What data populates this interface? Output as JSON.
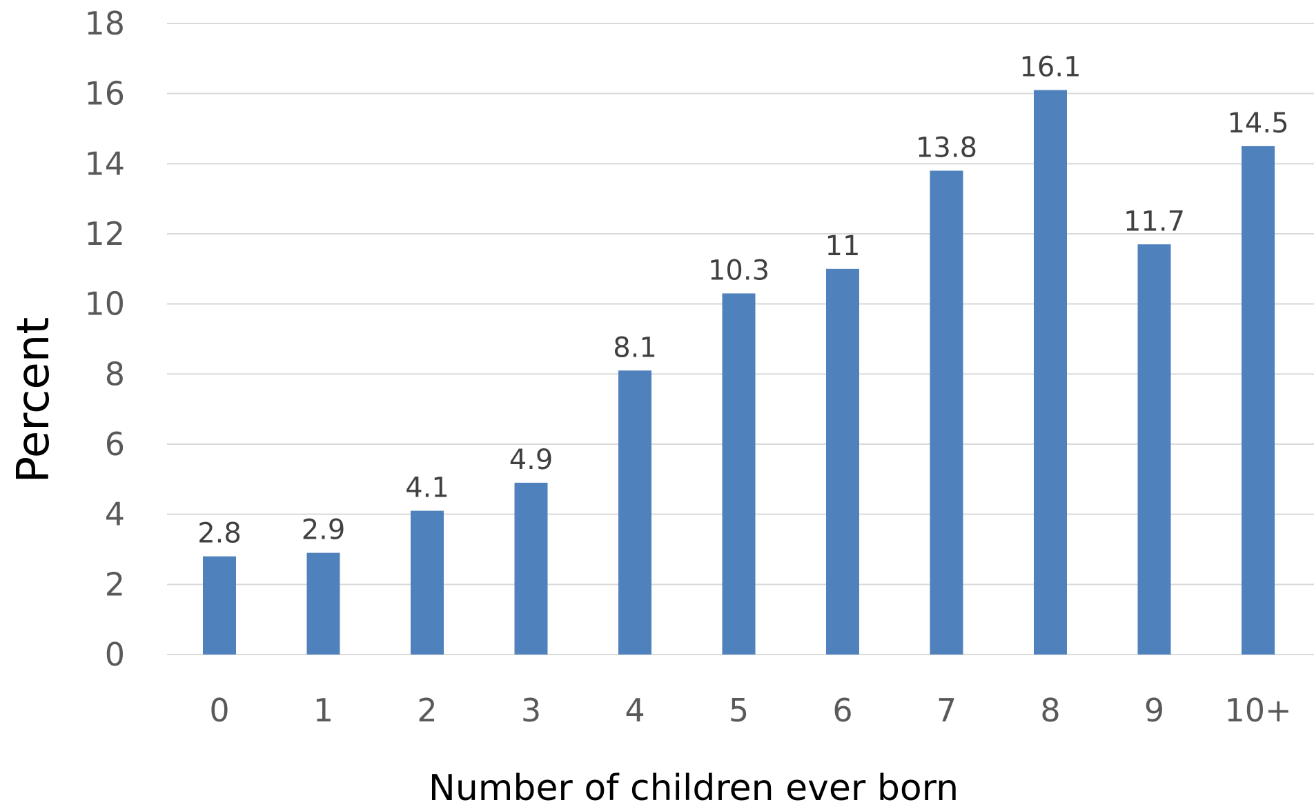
{
  "chart_data": {
    "type": "bar",
    "title": "",
    "xlabel": "Number of children ever born",
    "ylabel": "Percent",
    "categories": [
      "0",
      "1",
      "2",
      "3",
      "4",
      "5",
      "6",
      "7",
      "8",
      "9",
      "10+"
    ],
    "values": [
      2.8,
      2.9,
      4.1,
      4.9,
      8.1,
      10.3,
      11,
      13.8,
      16.1,
      11.7,
      14.5
    ],
    "data_labels": [
      "2.8",
      "2.9",
      "4.1",
      "4.9",
      "8.1",
      "10.3",
      "11",
      "13.8",
      "16.1",
      "11.7",
      "14.5"
    ],
    "ylim": [
      0,
      18
    ],
    "yticks": [
      "0",
      "2",
      "4",
      "6",
      "8",
      "10",
      "12",
      "14",
      "16",
      "18"
    ],
    "grid": true,
    "legend": "none",
    "bar_color": "#4f81bd"
  }
}
